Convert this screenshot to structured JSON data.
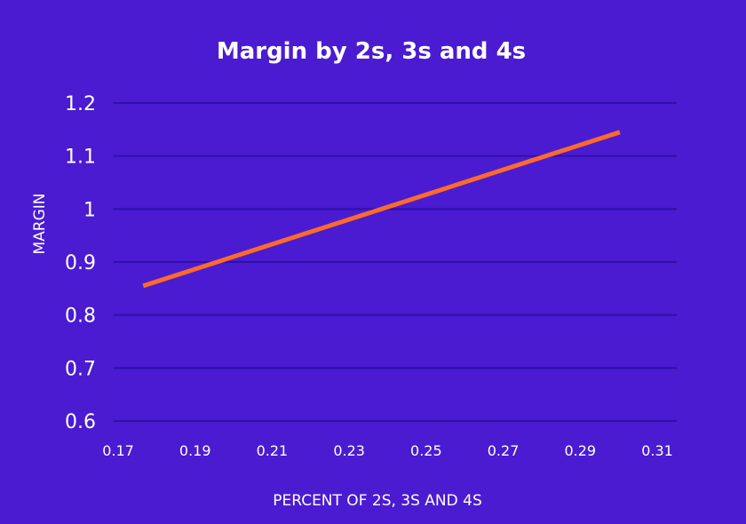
{
  "chart_data": {
    "type": "line",
    "title": "Margin by 2s, 3s and 4s",
    "xlabel": "PERCENT OF 2S, 3S AND 4S",
    "ylabel": "MARGIN",
    "xlim": [
      0.17,
      0.31
    ],
    "ylim": [
      0.6,
      1.2
    ],
    "xticks": [
      "0.17",
      "0.19",
      "0.21",
      "0.23",
      "0.25",
      "0.27",
      "0.29",
      "0.31"
    ],
    "yticks": [
      "1.2",
      "1.1",
      "1",
      "0.9",
      "0.8",
      "0.7",
      "0.6"
    ],
    "grid": true,
    "series": [
      {
        "x": [
          0.1765,
          0.3003
        ],
        "values": [
          0.855,
          1.145
        ],
        "color": "#ff6a2a"
      }
    ]
  },
  "colors": {
    "background": "#4a1bd1",
    "grid": "#3010a8",
    "text": "#ffffff",
    "line": "#ff6a2a"
  }
}
